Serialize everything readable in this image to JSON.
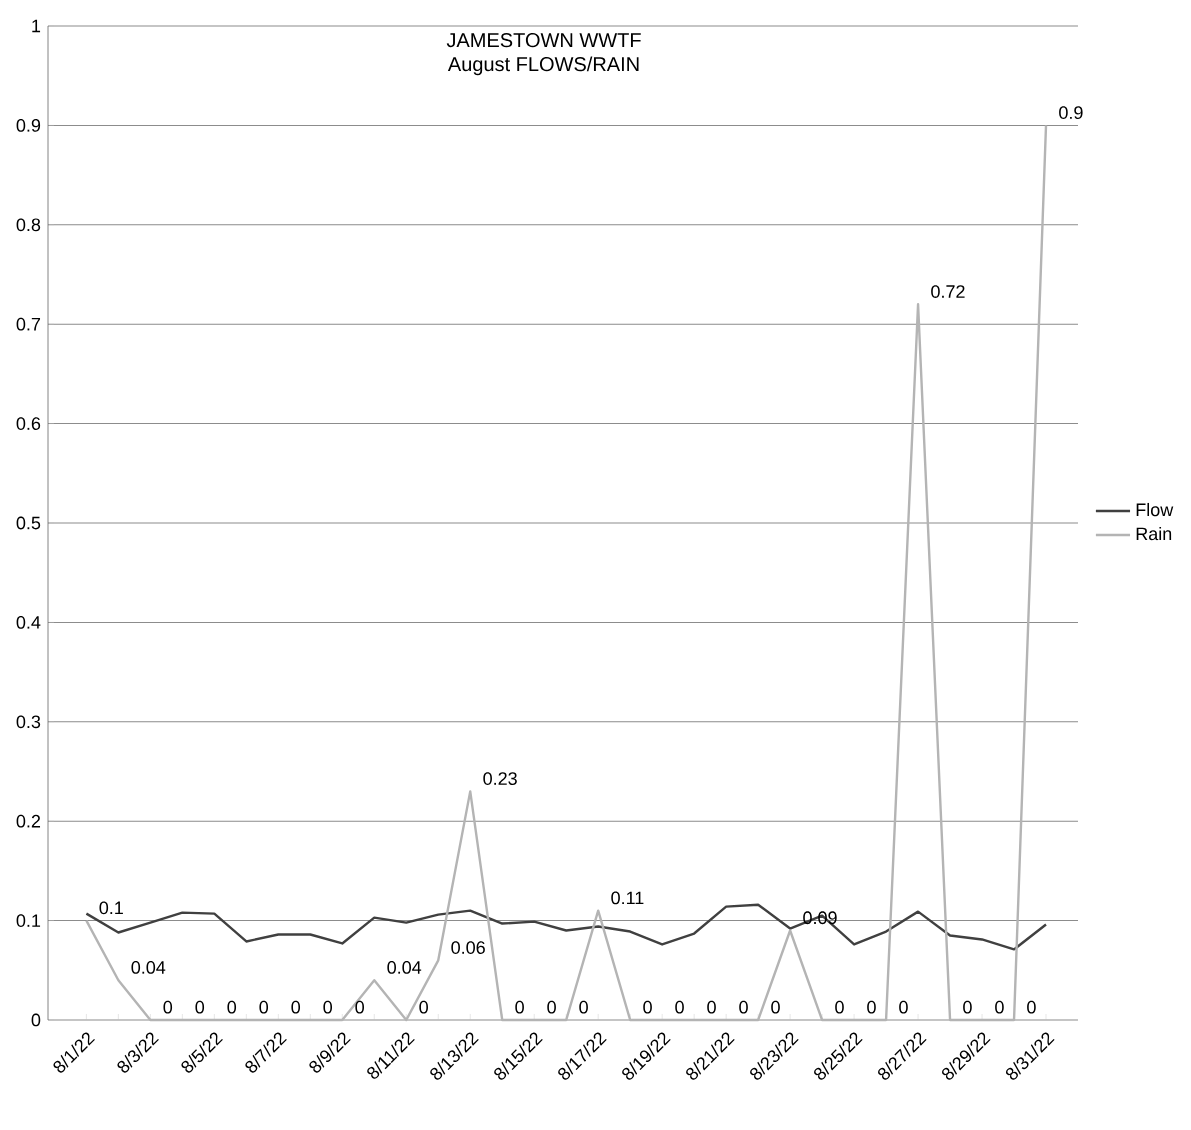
{
  "chart_data": {
    "type": "line",
    "title": "JAMESTOWN WWTF",
    "subtitle": "August FLOWS/RAIN",
    "categories": [
      "8/1/22",
      null,
      "8/3/22",
      null,
      "8/5/22",
      null,
      "8/7/22",
      null,
      "8/9/22",
      null,
      "8/11/22",
      null,
      "8/13/22",
      null,
      "8/15/22",
      null,
      "8/17/22",
      null,
      "8/19/22",
      null,
      "8/21/22",
      null,
      "8/23/22",
      null,
      "8/25/22",
      null,
      "8/27/22",
      null,
      "8/29/22",
      null,
      "8/31/22"
    ],
    "series": [
      {
        "name": "Flow",
        "color": "#404040",
        "values": [
          0.107,
          0.088,
          0.098,
          0.108,
          0.107,
          0.079,
          0.086,
          0.086,
          0.077,
          0.103,
          0.098,
          0.106,
          0.11,
          0.097,
          0.099,
          0.09,
          0.094,
          0.089,
          0.076,
          0.087,
          0.114,
          0.116,
          0.092,
          0.105,
          0.076,
          0.089,
          0.109,
          0.085,
          0.081,
          0.071,
          0.096
        ]
      },
      {
        "name": "Rain",
        "color": "#b4b4b4",
        "values": [
          0.1,
          0.04,
          0,
          0,
          0,
          0,
          0,
          0,
          0,
          0.04,
          0,
          0.06,
          0.23,
          0,
          0,
          0,
          0.11,
          0,
          0,
          0,
          0,
          0,
          0.09,
          0,
          0,
          0,
          0.72,
          0,
          0,
          0,
          0.9
        ],
        "value_labels": [
          "0.1",
          "0.04",
          "0",
          "0",
          "0",
          "0",
          "0",
          "0",
          "0",
          "0.04",
          "0",
          "0.06",
          "0.23",
          "0",
          "0",
          "0",
          "0.11",
          "0",
          "0",
          "0",
          "0",
          "0",
          "0.09",
          "0",
          "0",
          "0",
          "0.72",
          "0",
          "0",
          "0",
          "0.9"
        ]
      }
    ],
    "ylim": [
      0,
      1
    ],
    "yticks": [
      0,
      0.1,
      0.2,
      0.3,
      0.4,
      0.5,
      0.6,
      0.7,
      0.8,
      0.9,
      1
    ],
    "grid": "y",
    "legend": "right",
    "marker": "none",
    "line_style": "solid"
  }
}
